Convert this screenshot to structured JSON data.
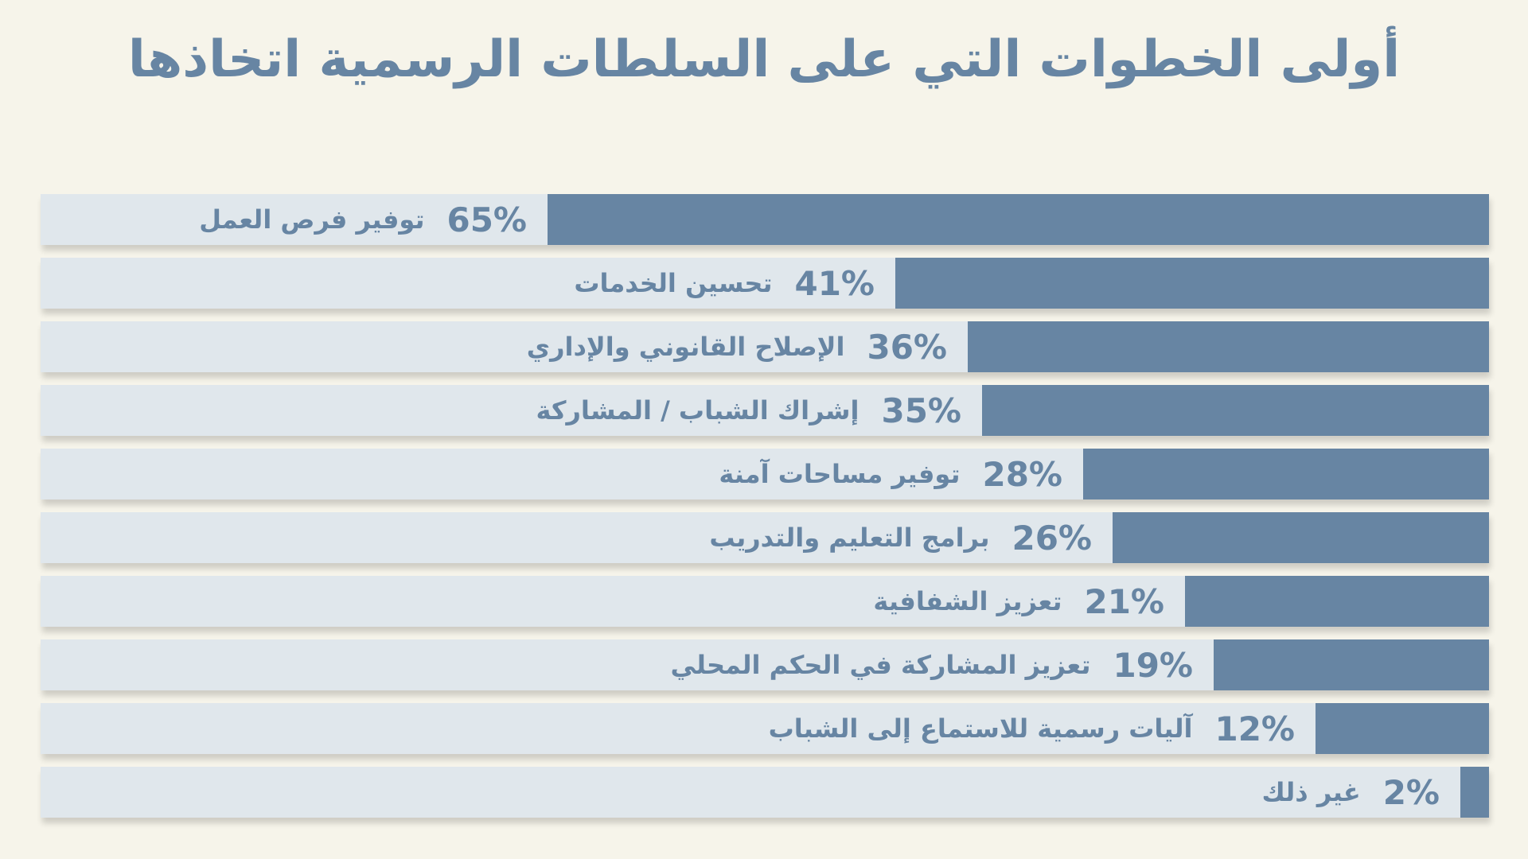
{
  "title": "أولى الخطوات التي على السلطات الرسمية اتخاذها",
  "colors": {
    "background": "#f6f4ea",
    "track": "#e0e7ec",
    "bar": "#6785a3",
    "text": "#6785a3"
  },
  "chart_data": {
    "type": "bar",
    "orientation": "horizontal",
    "direction": "rtl",
    "title": "أولى الخطوات التي على السلطات الرسمية اتخاذها",
    "xlim": [
      0,
      100
    ],
    "unit": "%",
    "grid": false,
    "categories": [
      "توفير فرص العمل",
      "تحسين الخدمات",
      "الإصلاح القانوني والإداري",
      "إشراك الشباب / المشاركة",
      "توفير مساحات آمنة",
      "برامج التعليم والتدريب",
      "تعزيز الشفافية",
      "تعزيز المشاركة في الحكم المحلي",
      "آليات رسمية للاستماع إلى الشباب",
      "غير ذلك"
    ],
    "values": [
      65,
      41,
      36,
      35,
      28,
      26,
      21,
      19,
      12,
      2
    ],
    "value_labels": [
      "65%",
      "41%",
      "36%",
      "35%",
      "28%",
      "26%",
      "21%",
      "19%",
      "12%",
      "2%"
    ]
  }
}
